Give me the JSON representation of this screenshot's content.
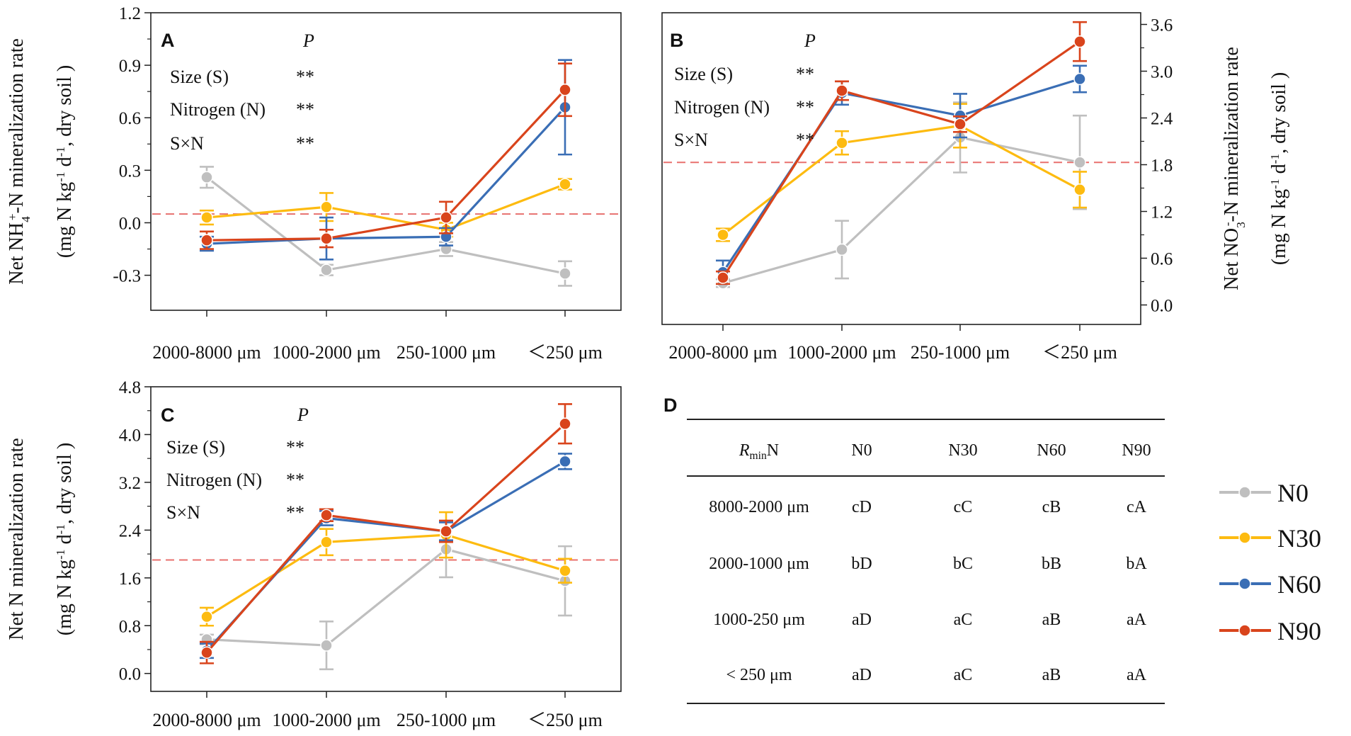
{
  "chart_data": [
    {
      "panel": "A",
      "type": "line",
      "categories": [
        "2000-8000 μm",
        "1000-2000 μm",
        "250-1000 μm",
        "<250 μm"
      ],
      "ylabel_line1": "Net NH4+-N mineralization rate",
      "ylabel_line2": "(mg N kg-1 d-1, dry soil )",
      "ylim": [
        -0.5,
        1.2
      ],
      "yticks": [
        -0.3,
        0.0,
        0.3,
        0.6,
        0.9,
        1.2
      ],
      "ytick_labels": [
        "-0.3",
        "0.0",
        "0.3",
        "0.6",
        "0.9",
        "1.2"
      ],
      "reference_line": 0.05,
      "stats": {
        "header": "P",
        "rows": [
          {
            "label": "Size (S)",
            "sig": "**"
          },
          {
            "label": "Nitrogen (N)",
            "sig": "**"
          },
          {
            "label": "S×N",
            "sig": "**"
          }
        ]
      },
      "series": [
        {
          "name": "N0",
          "values": [
            0.26,
            -0.27,
            -0.15,
            -0.29
          ],
          "errors": [
            0.06,
            0.03,
            0.04,
            0.07
          ]
        },
        {
          "name": "N30",
          "values": [
            0.03,
            0.09,
            -0.04,
            0.22
          ],
          "errors": [
            0.04,
            0.08,
            0.04,
            0.03
          ]
        },
        {
          "name": "N60",
          "values": [
            -0.12,
            -0.09,
            -0.08,
            0.66
          ],
          "errors": [
            0.04,
            0.12,
            0.05,
            0.27
          ]
        },
        {
          "name": "N90",
          "values": [
            -0.1,
            -0.09,
            0.03,
            0.76
          ],
          "errors": [
            0.05,
            0.05,
            0.09,
            0.15
          ]
        }
      ]
    },
    {
      "panel": "B",
      "type": "line",
      "categories": [
        "2000-8000 μm",
        "1000-2000 μm",
        "250-1000 μm",
        "<250 μm"
      ],
      "ylabel_line1": "Net NO3--N mineralization rate",
      "ylabel_line2": "(mg N kg-1 d-1, dry soil )",
      "ylim": [
        -0.25,
        3.75
      ],
      "yticks": [
        0.0,
        0.6,
        1.2,
        1.8,
        2.4,
        3.0,
        3.6
      ],
      "ytick_labels": [
        "0.0",
        "0.6",
        "1.2",
        "1.8",
        "2.4",
        "3.0",
        "3.6"
      ],
      "reference_line": 1.83,
      "stats": {
        "header": "P",
        "rows": [
          {
            "label": "Size (S)",
            "sig": "**"
          },
          {
            "label": "Nitrogen (N)",
            "sig": "**"
          },
          {
            "label": "S×N",
            "sig": "**"
          }
        ]
      },
      "series": [
        {
          "name": "N0",
          "values": [
            0.28,
            0.71,
            2.15,
            1.83
          ],
          "errors": [
            0.05,
            0.37,
            0.45,
            0.6
          ]
        },
        {
          "name": "N30",
          "values": [
            0.9,
            2.08,
            2.3,
            1.48
          ],
          "errors": [
            0.08,
            0.15,
            0.28,
            0.23
          ]
        },
        {
          "name": "N60",
          "values": [
            0.42,
            2.72,
            2.43,
            2.9
          ],
          "errors": [
            0.15,
            0.15,
            0.28,
            0.17
          ]
        },
        {
          "name": "N90",
          "values": [
            0.35,
            2.75,
            2.32,
            3.38
          ],
          "errors": [
            0.08,
            0.12,
            0.1,
            0.25
          ]
        }
      ]
    },
    {
      "panel": "C",
      "type": "line",
      "categories": [
        "2000-8000 μm",
        "1000-2000 μm",
        "250-1000 μm",
        "<250 μm"
      ],
      "ylabel_line1": "Net N mineralization rate",
      "ylabel_line2": "(mg N kg-1 d-1, dry soil )",
      "ylim": [
        -0.3,
        4.8
      ],
      "yticks": [
        0.0,
        0.8,
        1.6,
        2.4,
        3.2,
        4.0,
        4.8
      ],
      "ytick_labels": [
        "0.0",
        "0.8",
        "1.6",
        "2.4",
        "3.2",
        "4.0",
        "4.8"
      ],
      "reference_line": 1.9,
      "stats": {
        "header": "P",
        "rows": [
          {
            "label": "Size (S)",
            "sig": "**"
          },
          {
            "label": "Nitrogen (N)",
            "sig": "**"
          },
          {
            "label": "S×N",
            "sig": "**"
          }
        ]
      },
      "series": [
        {
          "name": "N0",
          "values": [
            0.57,
            0.47,
            2.08,
            1.55
          ],
          "errors": [
            0.08,
            0.4,
            0.47,
            0.58
          ]
        },
        {
          "name": "N30",
          "values": [
            0.95,
            2.2,
            2.32,
            1.72
          ],
          "errors": [
            0.15,
            0.22,
            0.38,
            0.2
          ]
        },
        {
          "name": "N60",
          "values": [
            0.38,
            2.6,
            2.38,
            3.55
          ],
          "errors": [
            0.12,
            0.12,
            0.15,
            0.13
          ]
        },
        {
          "name": "N90",
          "values": [
            0.35,
            2.65,
            2.38,
            4.18
          ],
          "errors": [
            0.18,
            0.1,
            0.18,
            0.33
          ]
        }
      ]
    }
  ],
  "legend": [
    {
      "name": "N0",
      "color": "#bfbfbf"
    },
    {
      "name": "N30",
      "color": "#fdbb10"
    },
    {
      "name": "N60",
      "color": "#3a6eb5"
    },
    {
      "name": "N90",
      "color": "#d9441c"
    }
  ],
  "colors": {
    "N0": "#bfbfbf",
    "N30": "#fdbb10",
    "N60": "#3a6eb5",
    "N90": "#d9441c",
    "reference_line": "#e8706e",
    "axis": "#222222"
  },
  "table_d": {
    "panel": "D",
    "header_prefix": "R",
    "header_subscript": "min",
    "header_suffix": "N",
    "columns": [
      "N0",
      "N30",
      "N60",
      "N90"
    ],
    "rows": [
      {
        "size": "8000-2000 μm",
        "values": [
          "cD",
          "cC",
          "cB",
          "cA"
        ]
      },
      {
        "size": "2000-1000 μm",
        "values": [
          "bD",
          "bC",
          "bB",
          "bA"
        ]
      },
      {
        "size": "1000-250 μm",
        "values": [
          "aD",
          "aC",
          "aB",
          "aA"
        ]
      },
      {
        "size": "< 250 μm",
        "values": [
          "aD",
          "aC",
          "aB",
          "aA"
        ]
      }
    ]
  }
}
